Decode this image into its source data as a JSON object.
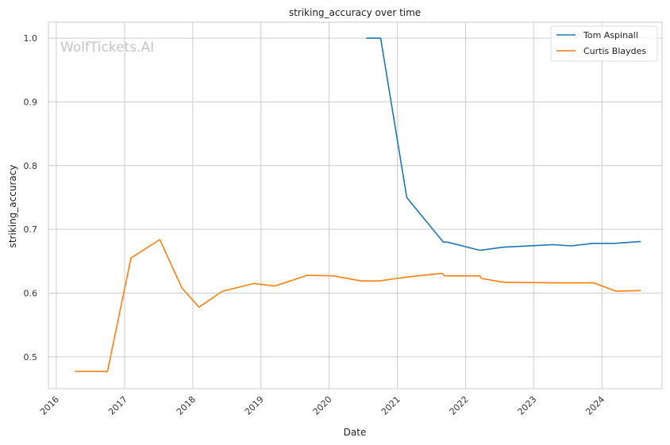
{
  "chart_data": {
    "type": "line",
    "title": "striking_accuracy over time",
    "xlabel": "Date",
    "ylabel": "striking_accuracy",
    "watermark": "WolfTickets.AI",
    "grid": true,
    "legend_position": "top-right",
    "xlim": [
      "2015-11-20",
      "2024-11-18"
    ],
    "ylim": [
      0.45,
      1.025
    ],
    "x_ticks": [
      "2016",
      "2017",
      "2018",
      "2019",
      "2020",
      "2021",
      "2022",
      "2023",
      "2024"
    ],
    "y_ticks": [
      "0.5",
      "0.6",
      "0.7",
      "0.8",
      "0.9",
      "1.0"
    ],
    "series": [
      {
        "name": "Tom Aspinall",
        "color": "#1f77b4",
        "points": [
          [
            "2020-07-18",
            1.0
          ],
          [
            "2020-10-03",
            1.0
          ],
          [
            "2021-02-20",
            0.75
          ],
          [
            "2021-09-04",
            0.68
          ],
          [
            "2021-09-25",
            0.68
          ],
          [
            "2022-03-19",
            0.667
          ],
          [
            "2022-07-23",
            0.672
          ],
          [
            "2023-04-15",
            0.676
          ],
          [
            "2023-07-22",
            0.674
          ],
          [
            "2023-11-11",
            0.678
          ],
          [
            "2024-03-09",
            0.678
          ],
          [
            "2024-07-27",
            0.681
          ]
        ]
      },
      {
        "name": "Curtis Blaydes",
        "color": "#ff7f0e",
        "points": [
          [
            "2016-04-10",
            0.477
          ],
          [
            "2016-10-01",
            0.477
          ],
          [
            "2017-02-04",
            0.655
          ],
          [
            "2017-07-08",
            0.684
          ],
          [
            "2017-11-04",
            0.608
          ],
          [
            "2018-02-03",
            0.578
          ],
          [
            "2018-06-09",
            0.603
          ],
          [
            "2018-11-24",
            0.615
          ],
          [
            "2019-03-16",
            0.611
          ],
          [
            "2019-09-07",
            0.628
          ],
          [
            "2020-01-25",
            0.627
          ],
          [
            "2020-06-20",
            0.619
          ],
          [
            "2020-09-26",
            0.619
          ],
          [
            "2021-02-13",
            0.625
          ],
          [
            "2021-08-28",
            0.631
          ],
          [
            "2021-09-11",
            0.627
          ],
          [
            "2022-03-19",
            0.627
          ],
          [
            "2022-03-26",
            0.623
          ],
          [
            "2022-07-23",
            0.617
          ],
          [
            "2023-04-15",
            0.616
          ],
          [
            "2023-11-18",
            0.616
          ],
          [
            "2024-03-16",
            0.603
          ],
          [
            "2024-07-27",
            0.604
          ]
        ]
      }
    ]
  }
}
